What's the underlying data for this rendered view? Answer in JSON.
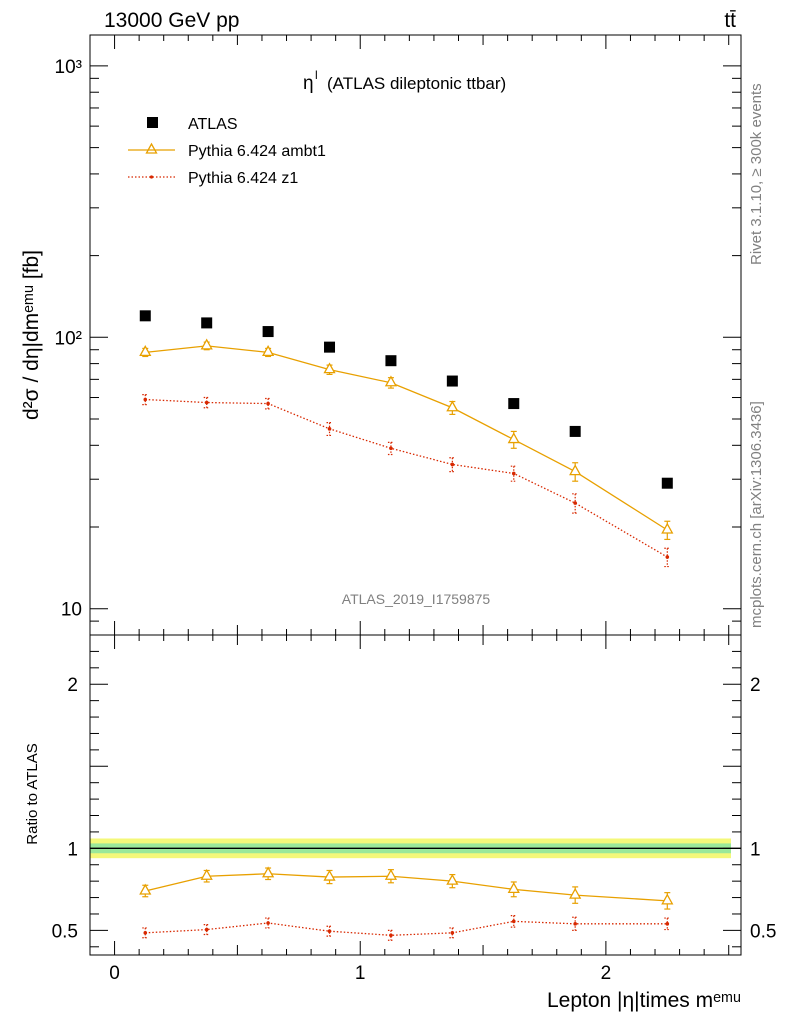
{
  "header": {
    "energy_label": "13000 GeV pp",
    "process_label": "tt̄"
  },
  "side_labels": {
    "rivet": "Rivet 3.1.10, ≥ 300k events",
    "mcplots": "mcplots.cern.ch [arXiv:1306.3436]"
  },
  "chart_data": [
    {
      "type": "scatter",
      "panel": "main",
      "title_symbol": "η",
      "title_superscript": "l",
      "title": "(ATLAS dileptonic ttbar)",
      "watermark": "ATLAS_2019_I1759875",
      "ylabel": "d²σ / dη|dmᵉᵐᵘ [fb]",
      "yscale": "log",
      "ylim": [
        8,
        1300
      ],
      "xlim": [
        -0.1,
        2.55
      ],
      "y_tick_labels": [
        "10",
        "10²",
        "10³"
      ],
      "legend_position": "top-left",
      "x": [
        0.125,
        0.375,
        0.625,
        0.875,
        1.125,
        1.375,
        1.625,
        1.875,
        2.25
      ],
      "series": [
        {
          "name": "ATLAS",
          "color": "#000000",
          "marker": "square",
          "values": [
            120,
            113,
            105,
            92,
            82,
            69,
            57,
            45,
            29
          ]
        },
        {
          "name": "Pythia 6.424 ambt1",
          "color": "#e8a000",
          "marker": "triangle",
          "line": "solid",
          "values": [
            88,
            93,
            88,
            76,
            68,
            55,
            42,
            32,
            19.5
          ],
          "errors": [
            3,
            3,
            3,
            3,
            3,
            3,
            3,
            2.5,
            1.5
          ]
        },
        {
          "name": "Pythia 6.424 z1",
          "color": "#d82800",
          "marker": "dot",
          "line": "dotted",
          "values": [
            59,
            57.5,
            57,
            46,
            39,
            34,
            31.5,
            24.5,
            15.5
          ],
          "errors": [
            2.5,
            2.5,
            2.5,
            2.5,
            2,
            2,
            2,
            2,
            1.2
          ]
        }
      ]
    },
    {
      "type": "scatter",
      "panel": "ratio",
      "ylabel": "Ratio to ATLAS",
      "xlabel": "Lepton |η|times mᵉᵐᵘ",
      "ylim": [
        0.35,
        2.3
      ],
      "xlim": [
        -0.1,
        2.55
      ],
      "x_tick_labels": [
        "0",
        "1",
        "2"
      ],
      "y_tick_labels": [
        "0.5",
        "1",
        "2"
      ],
      "reference": 1.0,
      "band_inner": [
        0.97,
        1.03
      ],
      "band_outer": [
        0.94,
        1.06
      ],
      "x": [
        0.125,
        0.375,
        0.625,
        0.875,
        1.125,
        1.375,
        1.625,
        1.875,
        2.25
      ],
      "series": [
        {
          "name": "Pythia 6.424 ambt1",
          "color": "#e8a000",
          "marker": "triangle",
          "line": "solid",
          "values": [
            0.74,
            0.83,
            0.845,
            0.825,
            0.83,
            0.8,
            0.75,
            0.715,
            0.68
          ],
          "errors": [
            0.035,
            0.035,
            0.035,
            0.04,
            0.04,
            0.04,
            0.045,
            0.05,
            0.05
          ]
        },
        {
          "name": "Pythia 6.424 z1",
          "color": "#d82800",
          "marker": "dot",
          "line": "dotted",
          "values": [
            0.485,
            0.505,
            0.545,
            0.495,
            0.47,
            0.485,
            0.555,
            0.54,
            0.54
          ],
          "errors": [
            0.03,
            0.03,
            0.03,
            0.03,
            0.03,
            0.03,
            0.035,
            0.04,
            0.035
          ]
        }
      ]
    }
  ]
}
